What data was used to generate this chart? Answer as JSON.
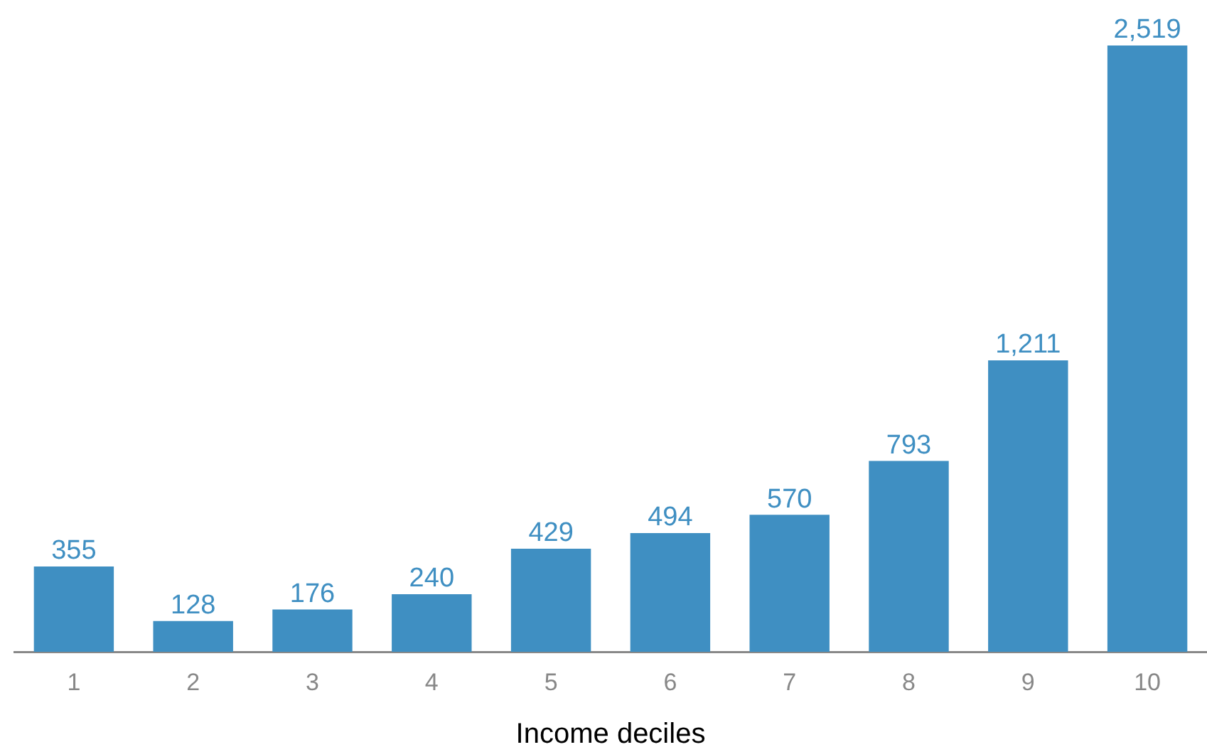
{
  "chart_data": {
    "type": "bar",
    "xlabel": "Income deciles",
    "categories": [
      "1",
      "2",
      "3",
      "4",
      "5",
      "6",
      "7",
      "8",
      "9",
      "10"
    ],
    "values": [
      355,
      128,
      176,
      240,
      429,
      494,
      570,
      793,
      1211,
      2519
    ],
    "value_labels": [
      "355",
      "128",
      "176",
      "240",
      "429",
      "494",
      "570",
      "793",
      "1,211",
      "2,519"
    ],
    "color": "#3f8fc2",
    "grid": false,
    "legend": false
  }
}
